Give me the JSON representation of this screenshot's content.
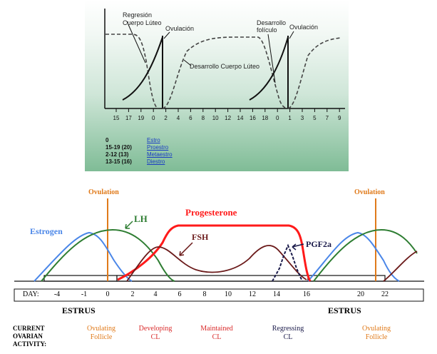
{
  "top": {
    "labels": {
      "regresion": "Regresión\nCuerpo Lúteo",
      "ovulacion1": "Ovulación",
      "desarrollo_cl": "Desarrollo Cuerpo Lúteo",
      "desarrollo_fol": "Desarrollo\nfolículo",
      "ovulacion2": "Ovulación"
    },
    "ticks": [
      "15",
      "17",
      "19",
      "0",
      "2",
      "4",
      "6",
      "8",
      "10",
      "12",
      "14",
      "16",
      "18",
      "0",
      "1",
      "3",
      "5",
      "7",
      "9"
    ],
    "legend": [
      {
        "code": "0",
        "label": "Estro"
      },
      {
        "code": "15-19 (20)",
        "label": "Proestro"
      },
      {
        "code": "2-12 (13)",
        "label": "Metaestro"
      },
      {
        "code": "13-15 (16)",
        "label": "Diestro"
      }
    ]
  },
  "bottom": {
    "ovulation_left": "Ovulation",
    "ovulation_right": "Ovulation",
    "estrogen": "Estrogen",
    "lh": "LH",
    "progesterone": "Progesterone",
    "fsh": "FSH",
    "pgf2a": "PGF2a",
    "day_label": "DAY:",
    "days": [
      "-4",
      "-1",
      "0",
      "2",
      "4",
      "6",
      "8",
      "10",
      "12",
      "14",
      "16",
      "20",
      "22"
    ],
    "estrus_left": "ESTRUS",
    "estrus_right": "ESTRUS",
    "current_label": [
      "CURRENT",
      "OVARIAN",
      "ACTIVITY:"
    ],
    "activities": [
      {
        "line1": "Ovulating",
        "line2": "Follicle",
        "color": "#e07a1a"
      },
      {
        "line1": "Developing",
        "line2": "CL",
        "color": "#d92b2b"
      },
      {
        "line1": "Maintained",
        "line2": "CL",
        "color": "#d92b2b"
      },
      {
        "line1": "Regressing",
        "line2": "CL",
        "color": "#1a1a4a"
      },
      {
        "line1": "Ovulating",
        "line2": "Follicle",
        "color": "#e07a1a"
      }
    ],
    "colors": {
      "estrogen": "#4a86e8",
      "lh": "#2e7d32",
      "progesterone": "#ff1a1a",
      "fsh": "#6b1a1a",
      "pgf2a": "#1a1a4a",
      "ovulation": "#e07a1a"
    }
  }
}
